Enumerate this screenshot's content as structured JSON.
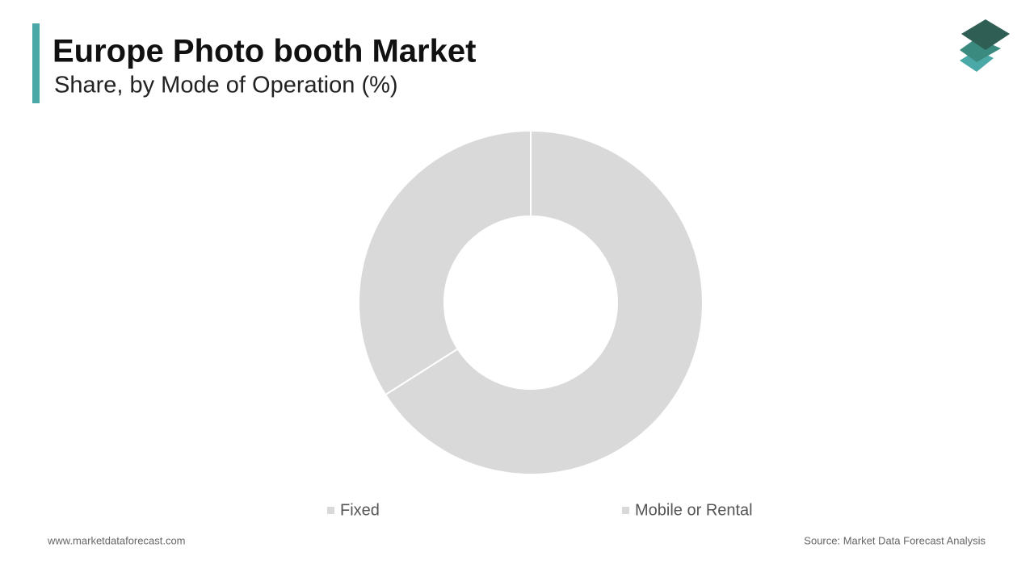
{
  "chart_data": {
    "type": "donut",
    "title": "Europe Photo booth Market",
    "subtitle": "Share, by Mode of Operation (%)",
    "categories": [
      "Fixed",
      "Mobile or Rental"
    ],
    "values": [
      66,
      34
    ],
    "colors": [
      "#d9d9d9",
      "#d9d9d9"
    ]
  },
  "footer": {
    "website": "www.marketdataforecast.com",
    "source": "Source: Market Data Forecast Analysis"
  }
}
